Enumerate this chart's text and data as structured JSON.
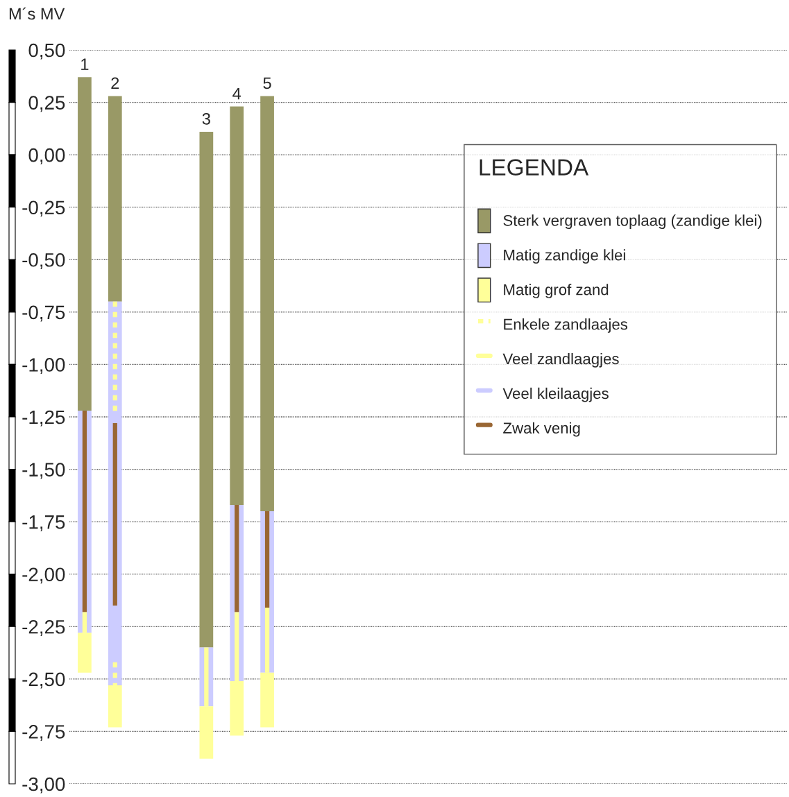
{
  "chart_data": {
    "type": "bar",
    "ylabel": "M´s MV",
    "legend_title": "LEGENDA",
    "categories": [
      "1",
      "2",
      null,
      null,
      "3",
      "4",
      "5"
    ],
    "series": [
      {
        "name": "Sterk vergraven toplaag (zandige klei)",
        "color": "#999966",
        "base": [
          -1.22,
          -0.7,
          null,
          null,
          -2.35,
          -1.67,
          -1.7
        ],
        "values": [
          1.59,
          0.98,
          null,
          null,
          2.46,
          1.9,
          1.98
        ]
      },
      {
        "name": "Matig zandige klei",
        "color": "#ccccff",
        "base": [
          -2.28,
          -2.53,
          null,
          null,
          -2.63,
          -2.51,
          -2.47
        ],
        "values": [
          1.06,
          1.83,
          null,
          null,
          0.28,
          0.84,
          0.77
        ]
      },
      {
        "name": "Matig grof zand",
        "color": "#ffff99",
        "base": [
          -2.47,
          -2.73,
          null,
          null,
          -2.88,
          -2.77,
          -2.73
        ],
        "values": [
          0.19,
          0.2,
          null,
          null,
          0.25,
          0.26,
          0.26
        ]
      },
      {
        "name": "Enkele zandlaajes",
        "type": "line",
        "line_style": "dashed",
        "color": "#ffff99",
        "x": [
          "2",
          "2"
        ],
        "values": [
          -0.7,
          -1.24
        ]
      },
      {
        "type": "line",
        "line_style": "dashed",
        "color": "#ffff99",
        "x": [
          "2",
          "2"
        ],
        "values": [
          -2.42,
          -2.53
        ]
      },
      {
        "name": "Veel zandlaagjes",
        "type": "line",
        "line_style": "solid",
        "color": "#ffff99",
        "x": [
          "1",
          "1",
          "1",
          "3",
          "3",
          "3",
          "4",
          "4",
          "4",
          "5",
          "5"
        ],
        "values": [
          -2.18,
          -2.28,
          null,
          -2.35,
          -2.63,
          null,
          -2.18,
          -2.51,
          null,
          -2.16,
          -2.47
        ]
      },
      {
        "name": "Veel kleilaagjes",
        "type": "line",
        "line_style": "solid",
        "color": "#ccccff",
        "values": [
          null,
          null,
          null,
          null,
          null,
          null,
          null
        ]
      },
      {
        "name": "Zwak venig",
        "type": "line",
        "line_style": "solid",
        "color": "#996633",
        "x": [
          "1",
          "1",
          "1",
          "2",
          "2",
          "2",
          "4",
          "4",
          "4",
          "5",
          "5"
        ],
        "values": [
          -1.22,
          -2.18,
          null,
          -1.28,
          -2.15,
          null,
          -1.67,
          -2.18,
          null,
          -1.7,
          -2.16
        ]
      }
    ],
    "ylim": [
      -3.0,
      0.5
    ],
    "yticks": [
      {
        "value": 0.5,
        "label": "0,50"
      },
      {
        "value": 0.25,
        "label": "0,25"
      },
      {
        "value": 0.0,
        "label": "0,00"
      },
      {
        "value": -0.25,
        "label": "-0,25"
      },
      {
        "value": -0.5,
        "label": "-0,50"
      },
      {
        "value": -0.75,
        "label": "-0,75"
      },
      {
        "value": -1.0,
        "label": "-1,00"
      },
      {
        "value": -1.25,
        "label": "-1,25"
      },
      {
        "value": -1.5,
        "label": "-1,50"
      },
      {
        "value": -1.75,
        "label": "-1,75"
      },
      {
        "value": -2.0,
        "label": "-2,00"
      },
      {
        "value": -2.25,
        "label": "-2,25"
      },
      {
        "value": -2.5,
        "label": "-2,50"
      },
      {
        "value": -2.75,
        "label": "-2,75"
      },
      {
        "value": -3.0,
        "label": "-3,00"
      }
    ],
    "grid": "y",
    "legend": "right",
    "tick_labels": "y"
  }
}
